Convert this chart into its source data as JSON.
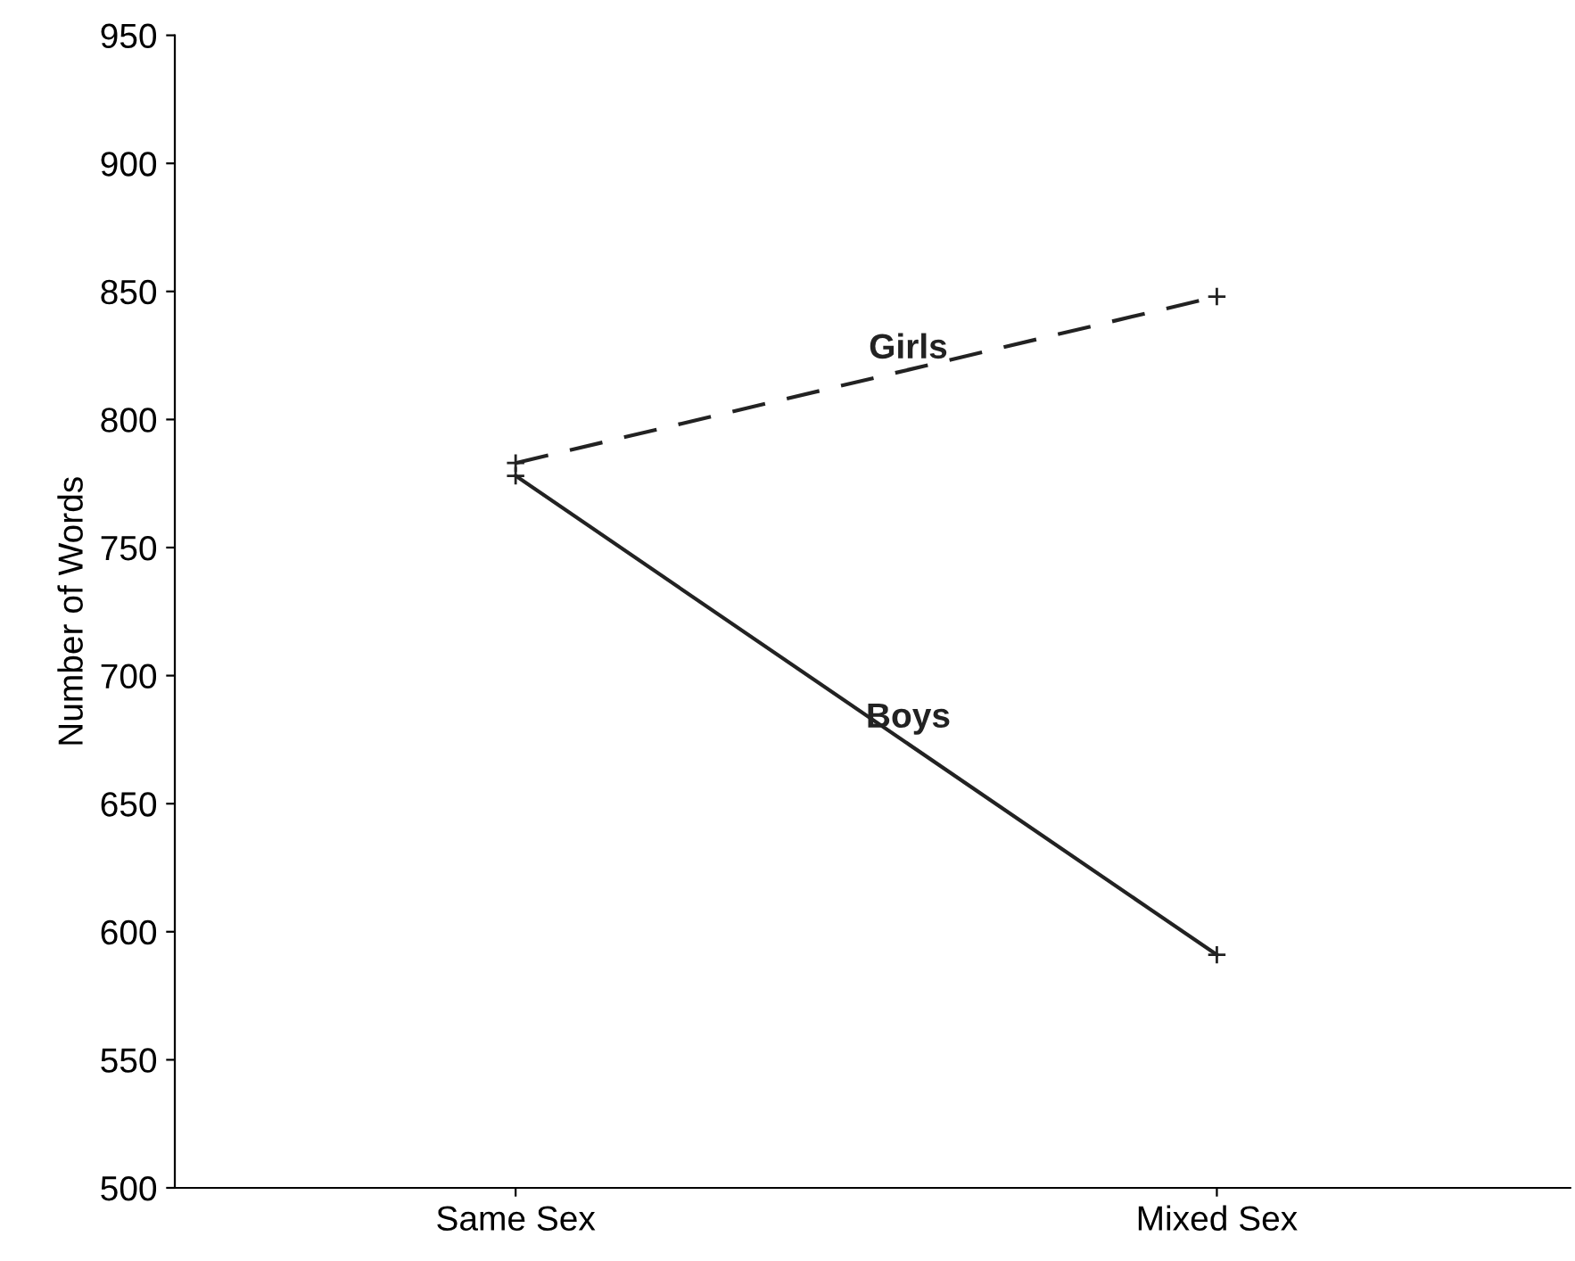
{
  "chart_data": {
    "type": "line",
    "ylabel": "Number of Words",
    "categories": [
      "Same Sex",
      "Mixed Sex"
    ],
    "series": [
      {
        "name": "Girls",
        "color": "#222222",
        "values": [
          783,
          848
        ],
        "line_style": "dashed"
      },
      {
        "name": "Boys",
        "color": "#222222",
        "values": [
          778,
          591
        ],
        "line_style": "solid"
      }
    ],
    "ylim": [
      500,
      950
    ],
    "yticks": [
      500,
      550,
      600,
      650,
      700,
      750,
      800,
      850,
      900,
      950
    ],
    "grid": false,
    "legend": false,
    "marker": "cross"
  }
}
